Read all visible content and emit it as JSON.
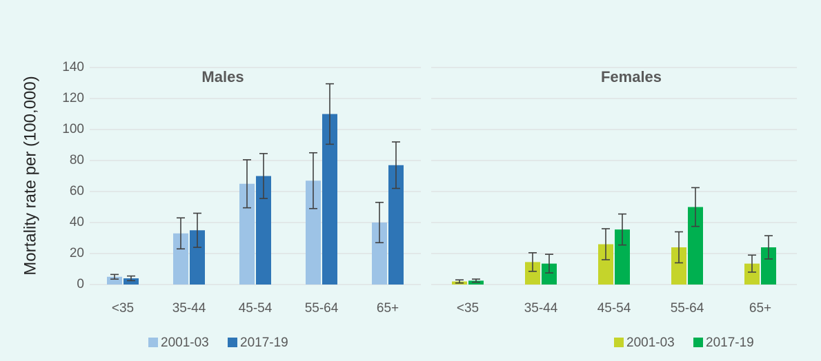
{
  "chart_data": [
    {
      "type": "bar",
      "title": "Males",
      "ylabel": "Mortality rate per (100,000)",
      "categories": [
        "<35",
        "35-44",
        "45-54",
        "55-64",
        "65+"
      ],
      "series": [
        {
          "name": "2001-03",
          "color": "#9dc3e6",
          "values": [
            5,
            33,
            65,
            67,
            40
          ],
          "errors": [
            1.5,
            10,
            15.5,
            18,
            13
          ]
        },
        {
          "name": "2017-19",
          "color": "#2e75b6",
          "values": [
            4,
            35,
            70,
            110,
            77
          ],
          "errors": [
            1.5,
            11,
            14.5,
            19.5,
            15
          ]
        }
      ],
      "ylim": [
        0,
        140
      ],
      "yticks": [
        0,
        20,
        40,
        60,
        80,
        100,
        120,
        140
      ],
      "grid": true
    },
    {
      "type": "bar",
      "title": "Females",
      "categories": [
        "<35",
        "35-44",
        "45-54",
        "55-64",
        "65+"
      ],
      "series": [
        {
          "name": "2001-03",
          "color": "#c5d42b",
          "values": [
            2,
            14.5,
            26,
            24,
            13.5
          ],
          "errors": [
            1,
            6,
            10,
            10,
            5.5
          ]
        },
        {
          "name": "2017-19",
          "color": "#00b050",
          "values": [
            2.5,
            13.5,
            35.5,
            50,
            24
          ],
          "errors": [
            1,
            6,
            10,
            12.5,
            7.5
          ]
        }
      ],
      "ylim": [
        0,
        140
      ],
      "grid": true
    }
  ]
}
